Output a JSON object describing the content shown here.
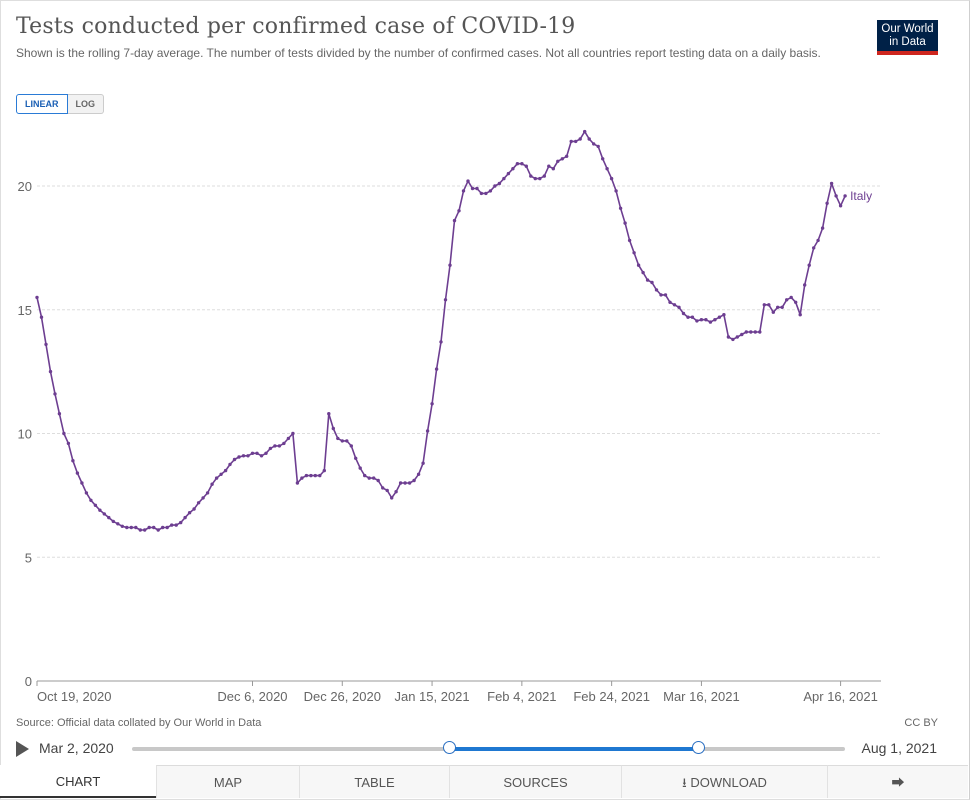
{
  "header": {
    "title": "Tests conducted per confirmed case of COVID-19",
    "subtitle": "Shown is the rolling 7-day average. The number of tests divided by the number of confirmed cases. Not all countries report testing data on a daily basis.",
    "logo_line1": "Our World",
    "logo_line2": "in Data"
  },
  "scale_toggle": {
    "linear_label": "LINEAR",
    "log_label": "LOG",
    "selected": "LINEAR"
  },
  "footer": {
    "source": "Source: Official data collated by Our World in Data",
    "license": "CC BY"
  },
  "timeline": {
    "start_label": "Mar 2, 2020",
    "end_label": "Aug 1, 2021",
    "selected_start_fraction": 0.446,
    "selected_end_fraction": 0.794
  },
  "tabs": {
    "chart": "CHART",
    "map": "MAP",
    "table": "TABLE",
    "sources": "SOURCES",
    "download": "DOWNLOAD",
    "selected": "CHART"
  },
  "colors": {
    "series": "#6d3e91",
    "accent": "#1f78d1",
    "logo_bg": "#002147",
    "logo_bar": "#ce261e"
  },
  "chart_data": {
    "type": "line",
    "title": "Tests conducted per confirmed case of COVID-19",
    "xlabel": "",
    "ylabel": "",
    "ylim": [
      0,
      22
    ],
    "yticks": [
      0,
      5,
      10,
      15,
      20
    ],
    "xlim": [
      "2020-10-19",
      "2021-04-25"
    ],
    "xticks": [
      {
        "date": "2020-10-19",
        "label": "Oct 19, 2020"
      },
      {
        "date": "2020-12-06",
        "label": "Dec 6, 2020"
      },
      {
        "date": "2020-12-26",
        "label": "Dec 26, 2020"
      },
      {
        "date": "2021-01-15",
        "label": "Jan 15, 2021"
      },
      {
        "date": "2021-02-04",
        "label": "Feb 4, 2021"
      },
      {
        "date": "2021-02-24",
        "label": "Feb 24, 2021"
      },
      {
        "date": "2021-03-16",
        "label": "Mar 16, 2021"
      },
      {
        "date": "2021-04-16",
        "label": "Apr 16, 2021"
      }
    ],
    "grid": true,
    "series": [
      {
        "name": "Italy",
        "points": [
          [
            "2020-10-19",
            15.5
          ],
          [
            "2020-10-20",
            14.7
          ],
          [
            "2020-10-21",
            13.6
          ],
          [
            "2020-10-22",
            12.5
          ],
          [
            "2020-10-23",
            11.6
          ],
          [
            "2020-10-24",
            10.8
          ],
          [
            "2020-10-25",
            10.0
          ],
          [
            "2020-10-26",
            9.6
          ],
          [
            "2020-10-27",
            8.9
          ],
          [
            "2020-10-28",
            8.4
          ],
          [
            "2020-10-29",
            8.0
          ],
          [
            "2020-10-30",
            7.6
          ],
          [
            "2020-10-31",
            7.3
          ],
          [
            "2020-11-01",
            7.1
          ],
          [
            "2020-11-02",
            6.9
          ],
          [
            "2020-11-03",
            6.75
          ],
          [
            "2020-11-04",
            6.6
          ],
          [
            "2020-11-05",
            6.45
          ],
          [
            "2020-11-06",
            6.35
          ],
          [
            "2020-11-07",
            6.25
          ],
          [
            "2020-11-08",
            6.2
          ],
          [
            "2020-11-09",
            6.2
          ],
          [
            "2020-11-10",
            6.2
          ],
          [
            "2020-11-11",
            6.1
          ],
          [
            "2020-11-12",
            6.1
          ],
          [
            "2020-11-13",
            6.2
          ],
          [
            "2020-11-14",
            6.2
          ],
          [
            "2020-11-15",
            6.1
          ],
          [
            "2020-11-16",
            6.2
          ],
          [
            "2020-11-17",
            6.2
          ],
          [
            "2020-11-18",
            6.3
          ],
          [
            "2020-11-19",
            6.3
          ],
          [
            "2020-11-20",
            6.4
          ],
          [
            "2020-11-21",
            6.6
          ],
          [
            "2020-11-22",
            6.8
          ],
          [
            "2020-11-23",
            6.95
          ],
          [
            "2020-11-24",
            7.2
          ],
          [
            "2020-11-25",
            7.4
          ],
          [
            "2020-11-26",
            7.6
          ],
          [
            "2020-11-27",
            7.95
          ],
          [
            "2020-11-28",
            8.2
          ],
          [
            "2020-11-29",
            8.35
          ],
          [
            "2020-11-30",
            8.5
          ],
          [
            "2020-12-01",
            8.75
          ],
          [
            "2020-12-02",
            8.95
          ],
          [
            "2020-12-03",
            9.05
          ],
          [
            "2020-12-04",
            9.1
          ],
          [
            "2020-12-05",
            9.1
          ],
          [
            "2020-12-06",
            9.2
          ],
          [
            "2020-12-07",
            9.2
          ],
          [
            "2020-12-08",
            9.1
          ],
          [
            "2020-12-09",
            9.2
          ],
          [
            "2020-12-10",
            9.4
          ],
          [
            "2020-12-11",
            9.5
          ],
          [
            "2020-12-12",
            9.5
          ],
          [
            "2020-12-13",
            9.6
          ],
          [
            "2020-12-14",
            9.8
          ],
          [
            "2020-12-15",
            10.0
          ],
          [
            "2020-12-16",
            8.0
          ],
          [
            "2020-12-17",
            8.2
          ],
          [
            "2020-12-18",
            8.3
          ],
          [
            "2020-12-19",
            8.3
          ],
          [
            "2020-12-20",
            8.3
          ],
          [
            "2020-12-21",
            8.3
          ],
          [
            "2020-12-22",
            8.5
          ],
          [
            "2020-12-23",
            10.8
          ],
          [
            "2020-12-24",
            10.2
          ],
          [
            "2020-12-25",
            9.8
          ],
          [
            "2020-12-26",
            9.7
          ],
          [
            "2020-12-27",
            9.7
          ],
          [
            "2020-12-28",
            9.5
          ],
          [
            "2020-12-29",
            9.0
          ],
          [
            "2020-12-30",
            8.6
          ],
          [
            "2020-12-31",
            8.3
          ],
          [
            "2021-01-01",
            8.2
          ],
          [
            "2021-01-02",
            8.2
          ],
          [
            "2021-01-03",
            8.1
          ],
          [
            "2021-01-04",
            7.8
          ],
          [
            "2021-01-05",
            7.7
          ],
          [
            "2021-01-06",
            7.4
          ],
          [
            "2021-01-07",
            7.65
          ],
          [
            "2021-01-08",
            8.0
          ],
          [
            "2021-01-09",
            8.0
          ],
          [
            "2021-01-10",
            8.0
          ],
          [
            "2021-01-11",
            8.1
          ],
          [
            "2021-01-12",
            8.35
          ],
          [
            "2021-01-13",
            8.8
          ],
          [
            "2021-01-14",
            10.1
          ],
          [
            "2021-01-15",
            11.2
          ],
          [
            "2021-01-16",
            12.6
          ],
          [
            "2021-01-17",
            13.7
          ],
          [
            "2021-01-18",
            15.4
          ],
          [
            "2021-01-19",
            16.8
          ],
          [
            "2021-01-20",
            18.6
          ],
          [
            "2021-01-21",
            19.0
          ],
          [
            "2021-01-22",
            19.8
          ],
          [
            "2021-01-23",
            20.2
          ],
          [
            "2021-01-24",
            19.9
          ],
          [
            "2021-01-25",
            19.9
          ],
          [
            "2021-01-26",
            19.7
          ],
          [
            "2021-01-27",
            19.7
          ],
          [
            "2021-01-28",
            19.8
          ],
          [
            "2021-01-29",
            20.0
          ],
          [
            "2021-01-30",
            20.1
          ],
          [
            "2021-01-31",
            20.3
          ],
          [
            "2021-02-01",
            20.5
          ],
          [
            "2021-02-02",
            20.7
          ],
          [
            "2021-02-03",
            20.9
          ],
          [
            "2021-02-04",
            20.9
          ],
          [
            "2021-02-05",
            20.8
          ],
          [
            "2021-02-06",
            20.4
          ],
          [
            "2021-02-07",
            20.3
          ],
          [
            "2021-02-08",
            20.3
          ],
          [
            "2021-02-09",
            20.4
          ],
          [
            "2021-02-10",
            20.8
          ],
          [
            "2021-02-11",
            20.7
          ],
          [
            "2021-02-12",
            21.0
          ],
          [
            "2021-02-13",
            21.1
          ],
          [
            "2021-02-14",
            21.2
          ],
          [
            "2021-02-15",
            21.8
          ],
          [
            "2021-02-16",
            21.8
          ],
          [
            "2021-02-17",
            21.9
          ],
          [
            "2021-02-18",
            22.2
          ],
          [
            "2021-02-19",
            21.9
          ],
          [
            "2021-02-20",
            21.7
          ],
          [
            "2021-02-21",
            21.6
          ],
          [
            "2021-02-22",
            21.1
          ],
          [
            "2021-02-23",
            20.7
          ],
          [
            "2021-02-24",
            20.3
          ],
          [
            "2021-02-25",
            19.8
          ],
          [
            "2021-02-26",
            19.1
          ],
          [
            "2021-02-27",
            18.5
          ],
          [
            "2021-02-28",
            17.8
          ],
          [
            "2021-03-01",
            17.3
          ],
          [
            "2021-03-02",
            16.8
          ],
          [
            "2021-03-03",
            16.5
          ],
          [
            "2021-03-04",
            16.2
          ],
          [
            "2021-03-05",
            16.1
          ],
          [
            "2021-03-06",
            15.8
          ],
          [
            "2021-03-07",
            15.6
          ],
          [
            "2021-03-08",
            15.6
          ],
          [
            "2021-03-09",
            15.3
          ],
          [
            "2021-03-10",
            15.2
          ],
          [
            "2021-03-11",
            15.1
          ],
          [
            "2021-03-12",
            14.85
          ],
          [
            "2021-03-13",
            14.7
          ],
          [
            "2021-03-14",
            14.7
          ],
          [
            "2021-03-15",
            14.55
          ],
          [
            "2021-03-16",
            14.6
          ],
          [
            "2021-03-17",
            14.6
          ],
          [
            "2021-03-18",
            14.5
          ],
          [
            "2021-03-19",
            14.6
          ],
          [
            "2021-03-20",
            14.7
          ],
          [
            "2021-03-21",
            14.8
          ],
          [
            "2021-03-22",
            13.9
          ],
          [
            "2021-03-23",
            13.8
          ],
          [
            "2021-03-24",
            13.9
          ],
          [
            "2021-03-25",
            14.0
          ],
          [
            "2021-03-26",
            14.1
          ],
          [
            "2021-03-27",
            14.1
          ],
          [
            "2021-03-28",
            14.1
          ],
          [
            "2021-03-29",
            14.1
          ],
          [
            "2021-03-30",
            15.2
          ],
          [
            "2021-03-31",
            15.2
          ],
          [
            "2021-04-01",
            14.9
          ],
          [
            "2021-04-02",
            15.1
          ],
          [
            "2021-04-03",
            15.1
          ],
          [
            "2021-04-04",
            15.4
          ],
          [
            "2021-04-05",
            15.5
          ],
          [
            "2021-04-06",
            15.3
          ],
          [
            "2021-04-07",
            14.8
          ],
          [
            "2021-04-08",
            16.0
          ],
          [
            "2021-04-09",
            16.8
          ],
          [
            "2021-04-10",
            17.5
          ],
          [
            "2021-04-11",
            17.8
          ],
          [
            "2021-04-12",
            18.3
          ],
          [
            "2021-04-13",
            19.3
          ],
          [
            "2021-04-14",
            20.1
          ],
          [
            "2021-04-15",
            19.6
          ],
          [
            "2021-04-16",
            19.2
          ],
          [
            "2021-04-17",
            19.6
          ]
        ]
      }
    ]
  }
}
